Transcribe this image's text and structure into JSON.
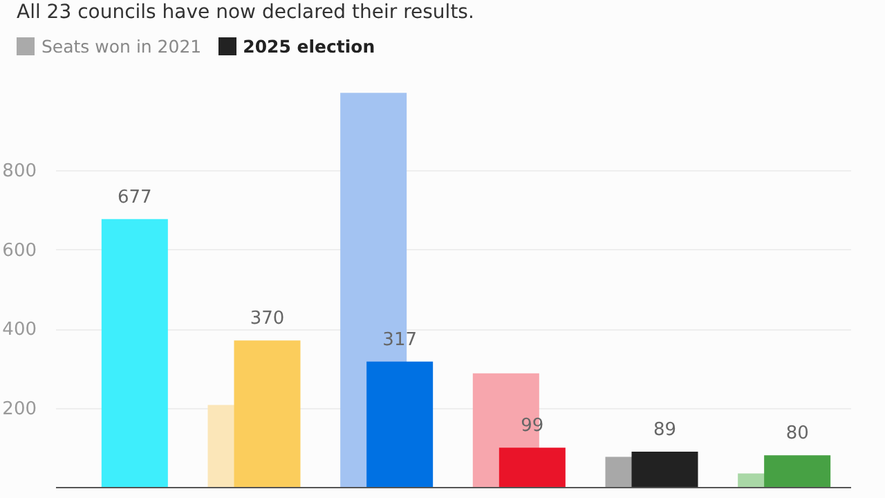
{
  "chart_data": {
    "type": "bar",
    "subtitle": "All 23 councils have now declared their results.",
    "categories": [
      null,
      null,
      null,
      null,
      null,
      null
    ],
    "series": [
      {
        "name": "Seats won in 2021",
        "color": "#aaaaaa",
        "colors": [
          "#9ff3fb",
          "#fbe6b8",
          "#a3c3f2",
          "#f7a6ad",
          "#a8a8a8",
          "#a9d8a6"
        ],
        "values": [
          null,
          207,
          996,
          287,
          76,
          34
        ]
      },
      {
        "name": "2025 election",
        "color": "#222222",
        "colors": [
          "#3eeefc",
          "#fbcd5c",
          "#0071e3",
          "#ea1429",
          "#222222",
          "#47a144"
        ],
        "values": [
          677,
          370,
          317,
          99,
          89,
          80
        ],
        "value_labels": [
          "677",
          "370",
          "317",
          "99",
          "89",
          "80"
        ]
      }
    ],
    "ylim": [
      0,
      1000
    ],
    "yticks": [
      200,
      400,
      600,
      800
    ],
    "grid": "y",
    "legend": "top left"
  }
}
